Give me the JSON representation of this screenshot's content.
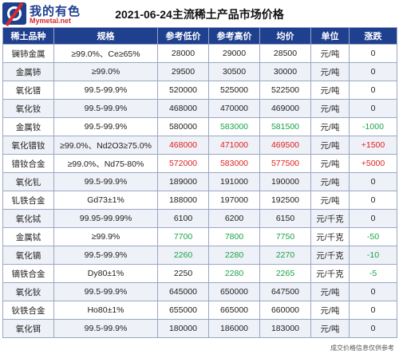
{
  "header": {
    "logo_cn": "我的有色",
    "logo_en": "Mymetal.net",
    "title": "2021-06-24主流稀土产品市场价格"
  },
  "table": {
    "columns": [
      "稀土品种",
      "规格",
      "参考低价",
      "参考高价",
      "均价",
      "单位",
      "涨跌"
    ],
    "rows": [
      {
        "name": "镧铈金属",
        "spec": "≥99.0%、Ce≥65%",
        "low": "28000",
        "high": "29000",
        "avg": "28500",
        "unit": "元/吨",
        "change": "0",
        "tone": ""
      },
      {
        "name": "金属铈",
        "spec": "≥99.0%",
        "low": "29500",
        "high": "30500",
        "avg": "30000",
        "unit": "元/吨",
        "change": "0",
        "tone": ""
      },
      {
        "name": "氧化镨",
        "spec": "99.5-99.9%",
        "low": "520000",
        "high": "525000",
        "avg": "522500",
        "unit": "元/吨",
        "change": "0",
        "tone": ""
      },
      {
        "name": "氧化钕",
        "spec": "99.5-99.9%",
        "low": "468000",
        "high": "470000",
        "avg": "469000",
        "unit": "元/吨",
        "change": "0",
        "tone": ""
      },
      {
        "name": "金属钕",
        "spec": "99.5-99.9%",
        "low": "580000",
        "high": "583000",
        "avg": "581500",
        "unit": "元/吨",
        "change": "-1000",
        "tone": "green"
      },
      {
        "name": "氧化镨钕",
        "spec": "≥99.0%、Nd2O3≥75.0%",
        "low": "468000",
        "high": "471000",
        "avg": "469500",
        "unit": "元/吨",
        "change": "+1500",
        "tone": "red"
      },
      {
        "name": "镨钕合金",
        "spec": "≥99.0%、Nd75-80%",
        "low": "572000",
        "high": "583000",
        "avg": "577500",
        "unit": "元/吨",
        "change": "+5000",
        "tone": "red"
      },
      {
        "name": "氧化钆",
        "spec": "99.5-99.9%",
        "low": "189000",
        "high": "191000",
        "avg": "190000",
        "unit": "元/吨",
        "change": "0",
        "tone": ""
      },
      {
        "name": "钆铁合金",
        "spec": "Gd73±1%",
        "low": "188000",
        "high": "197000",
        "avg": "192500",
        "unit": "元/吨",
        "change": "0",
        "tone": ""
      },
      {
        "name": "氧化铽",
        "spec": "99.95-99.99%",
        "low": "6100",
        "high": "6200",
        "avg": "6150",
        "unit": "元/千克",
        "change": "0",
        "tone": ""
      },
      {
        "name": "金属铽",
        "spec": "≥99.9%",
        "low": "7700",
        "high": "7800",
        "avg": "7750",
        "unit": "元/千克",
        "change": "-50",
        "tone": "green"
      },
      {
        "name": "氧化镝",
        "spec": "99.5-99.9%",
        "low": "2260",
        "high": "2280",
        "avg": "2270",
        "unit": "元/千克",
        "change": "-10",
        "tone": "green"
      },
      {
        "name": "镝铁合金",
        "spec": "Dy80±1%",
        "low": "2250",
        "high": "2280",
        "avg": "2265",
        "unit": "元/千克",
        "change": "-5",
        "tone": "green"
      },
      {
        "name": "氧化钬",
        "spec": "99.5-99.9%",
        "low": "645000",
        "high": "650000",
        "avg": "647500",
        "unit": "元/吨",
        "change": "0",
        "tone": ""
      },
      {
        "name": "钬铁合金",
        "spec": "Ho80±1%",
        "low": "655000",
        "high": "665000",
        "avg": "660000",
        "unit": "元/吨",
        "change": "0",
        "tone": ""
      },
      {
        "name": "氧化铒",
        "spec": "99.5-99.9%",
        "low": "180000",
        "high": "186000",
        "avg": "183000",
        "unit": "元/吨",
        "change": "0",
        "tone": ""
      }
    ]
  },
  "footer": {
    "disclaimer": "成交价格信息仅供参考"
  }
}
